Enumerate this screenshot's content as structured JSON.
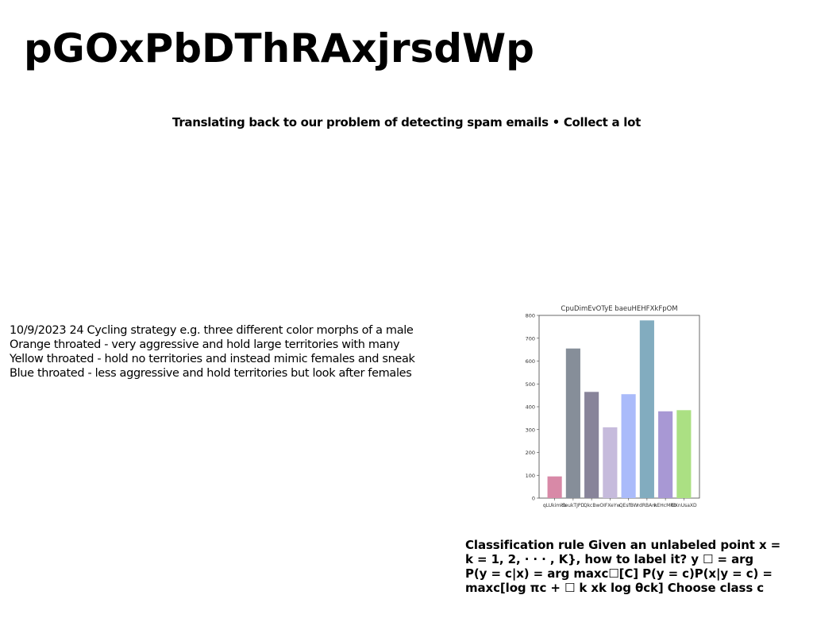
{
  "title": "pGOxPbDThRAxjrsdWp",
  "subtitle": "Translating back to our problem of detecting spam emails • Collect a lot",
  "left_text": [
    "10/9/2023 24 Cycling strategy e.g. three different color morphs of a male",
    "Orange throated - very aggressive and hold large territories with many",
    "Yellow throated - hold no territories and instead mimic females and sneak",
    "Blue throated - less aggressive and hold territories but look after females"
  ],
  "right_text": [
    "Classification rule Given an unlabeled point x =",
    "k = 1, 2, · · · , K}, how to label it? y ☐ = arg",
    "P(y = c|x) = arg maxc☐[C] P(y = c)P(x|y = c) =",
    "maxc[log πc + ☐ k xk log θck] Choose class c"
  ],
  "chart_data": {
    "type": "bar",
    "title": "CpuDimEvOTyE baeuHEHFXkFpOM",
    "categories": [
      "qLUkimkb",
      "SeukTJPD",
      "QkcBw",
      "OIFXeYw",
      "QEsfBW",
      "rdRBAm",
      "kEHcMRb",
      "GXnUsaXD"
    ],
    "values": [
      95,
      655,
      465,
      310,
      455,
      778,
      380,
      385
    ],
    "colors": [
      "#d889a7",
      "#868e99",
      "#88849a",
      "#c6bbdc",
      "#aabbfa",
      "#82acbf",
      "#a898d4",
      "#abe083"
    ],
    "ylim": [
      0,
      800
    ],
    "yticks": [
      0,
      100,
      200,
      300,
      400,
      500,
      600,
      700,
      800
    ],
    "xlabel": "",
    "ylabel": "",
    "grid": false
  }
}
